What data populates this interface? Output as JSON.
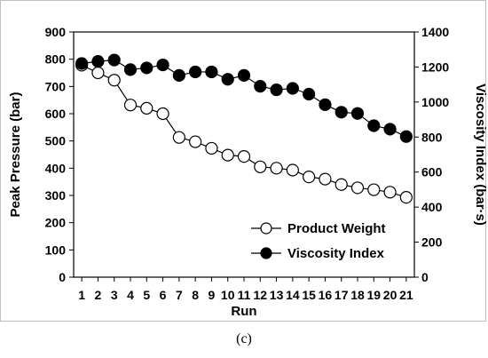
{
  "caption": "(c)",
  "chart_data": {
    "type": "line",
    "title": "",
    "xlabel": "Run",
    "ylabel_left": "Peak Pressure (bar)",
    "ylabel_right": "Viscosity Index (bar·s)",
    "x": [
      1,
      2,
      3,
      4,
      5,
      6,
      7,
      8,
      9,
      10,
      11,
      12,
      13,
      14,
      15,
      16,
      17,
      18,
      19,
      20,
      21
    ],
    "xlim": [
      0.5,
      21.5
    ],
    "ylim_left": [
      0,
      900
    ],
    "yticks_left": [
      0,
      100,
      200,
      300,
      400,
      500,
      600,
      700,
      800,
      900
    ],
    "ylim_right": [
      0,
      1400
    ],
    "yticks_right": [
      0,
      200,
      400,
      600,
      800,
      1000,
      1200,
      1400
    ],
    "grid": false,
    "legend_position": "bottom-right",
    "series": [
      {
        "name": "Product Weight",
        "axis": "left",
        "marker": "open-circle",
        "color": "#000000",
        "values": [
          778,
          750,
          723,
          632,
          620,
          600,
          513,
          497,
          473,
          448,
          443,
          405,
          400,
          393,
          368,
          360,
          340,
          328,
          321,
          312,
          293
        ]
      },
      {
        "name": "Viscosity Index",
        "axis": "right",
        "marker": "filled-circle",
        "color": "#000000",
        "values": [
          1220,
          1232,
          1240,
          1185,
          1195,
          1212,
          1152,
          1172,
          1172,
          1130,
          1152,
          1090,
          1070,
          1078,
          1045,
          985,
          942,
          935,
          865,
          845,
          803
        ]
      }
    ]
  }
}
